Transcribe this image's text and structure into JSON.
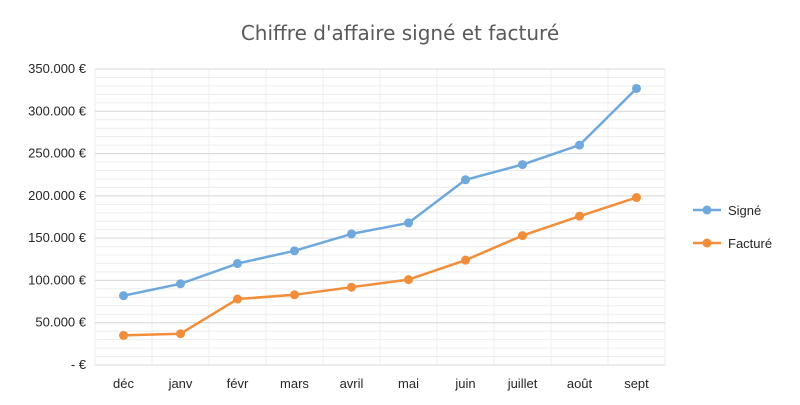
{
  "chart_data": {
    "type": "line",
    "title": "Chiffre d'affaire signé et facturé",
    "categories": [
      "déc",
      "janv",
      "févr",
      "mars",
      "avril",
      "mai",
      "juin",
      "juillet",
      "août",
      "sept"
    ],
    "series": [
      {
        "name": "Signé",
        "color": "#6fa8dc",
        "values": [
          82000,
          96000,
          120000,
          135000,
          155000,
          168000,
          219000,
          237000,
          260000,
          327000
        ]
      },
      {
        "name": "Facturé",
        "color": "#f28e3a",
        "values": [
          35000,
          37000,
          78000,
          83000,
          92000,
          101000,
          124000,
          153000,
          176000,
          198000
        ]
      }
    ],
    "y_ticks": [
      0,
      50000,
      100000,
      150000,
      200000,
      250000,
      300000,
      350000
    ],
    "y_tick_labels": [
      "-   €",
      "50.000 €",
      "100.000 €",
      "150.000 €",
      "200.000 €",
      "250.000 €",
      "300.000 €",
      "350.000 €"
    ],
    "ylim": [
      0,
      350000
    ],
    "xlabel": "",
    "ylabel": "",
    "grid": true,
    "legend_position": "right"
  }
}
